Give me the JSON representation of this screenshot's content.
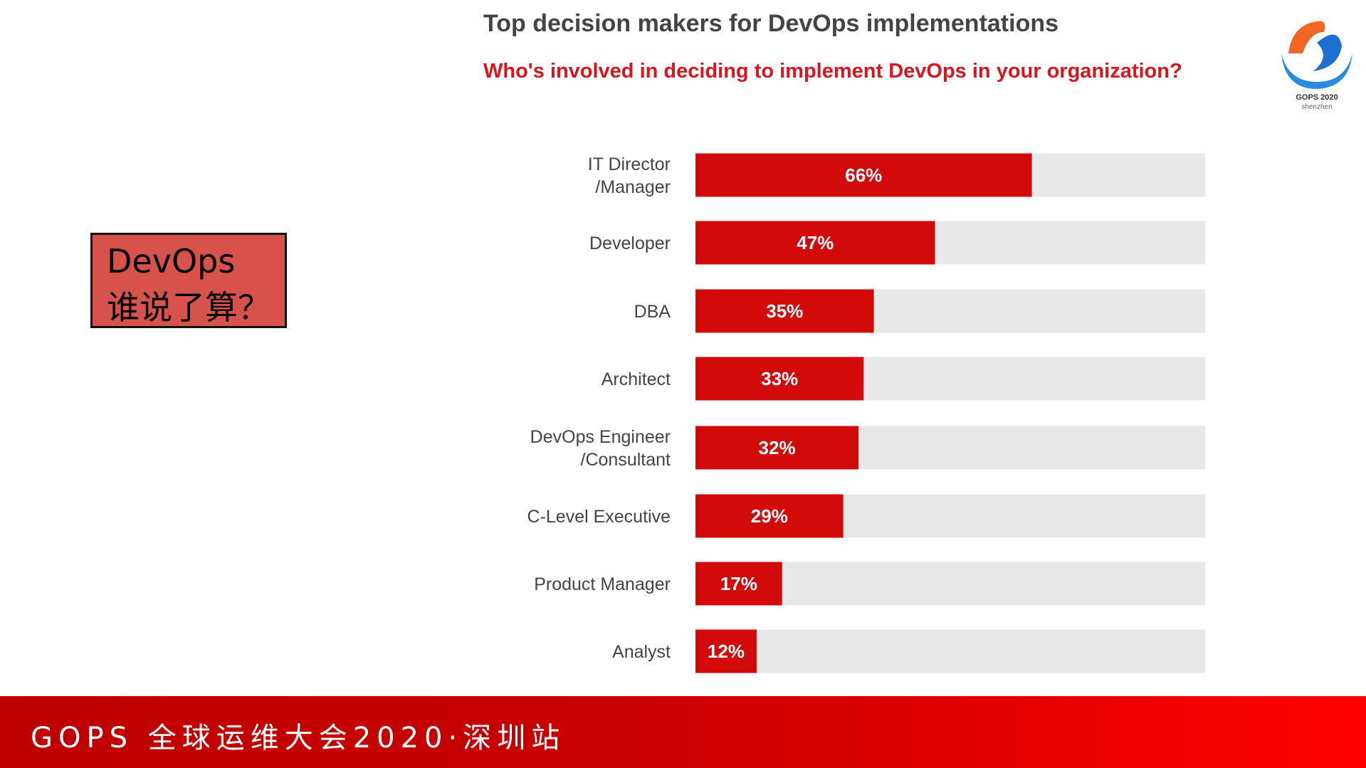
{
  "slide": {
    "callout_line1": "DevOps",
    "callout_line2": "谁说了算？",
    "footer_text": "GOPS 全球运维大会2020·深圳站",
    "logo_text": "GOPS 2020 shenzhen"
  },
  "chart_data": {
    "type": "bar",
    "orientation": "horizontal",
    "title": "Top decision makers for DevOps implementations",
    "subtitle": "Who's involved in deciding to implement DevOps in your organization?",
    "categories": [
      "IT Director\n/Manager",
      "Developer",
      "DBA",
      "Architect",
      "DevOps Engineer\n/Consultant",
      "C-Level Executive",
      "Product Manager",
      "Analyst"
    ],
    "values": [
      66,
      47,
      35,
      33,
      32,
      29,
      17,
      12
    ],
    "data_labels": [
      "66%",
      "47%",
      "35%",
      "33%",
      "32%",
      "29%",
      "17%",
      "12%"
    ],
    "xlim": [
      0,
      100
    ],
    "unit": "%",
    "grid": false,
    "legend": "none",
    "colors": {
      "bar": "#d20a0a",
      "track": "#e8e8e8",
      "label": "#444444",
      "data_label": "#ffffff"
    }
  }
}
